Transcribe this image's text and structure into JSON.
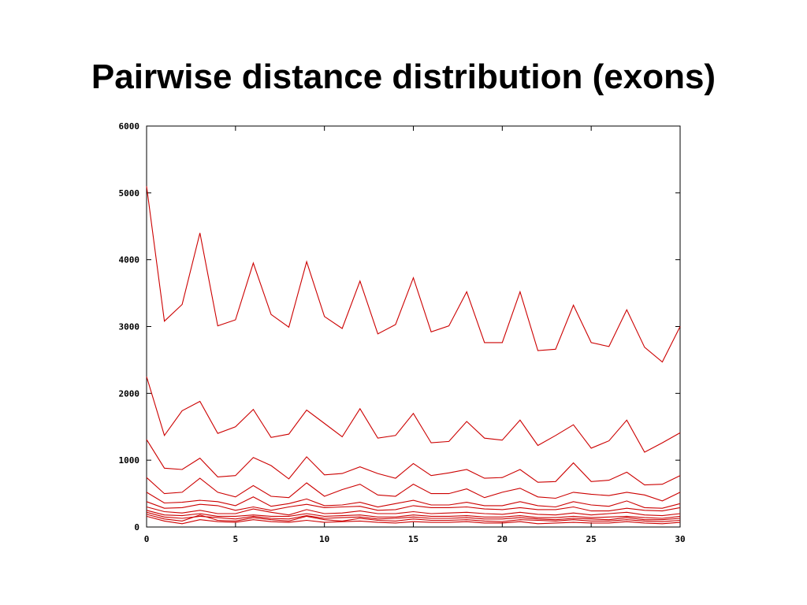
{
  "slide": {
    "title": "Pairwise distance distribution (exons)"
  },
  "chart_data": {
    "type": "line",
    "title": "",
    "xlabel": "",
    "ylabel": "",
    "xlim": [
      0,
      30
    ],
    "ylim": [
      0,
      6000
    ],
    "x_ticks": [
      "0",
      "5",
      "10",
      "15",
      "20",
      "25",
      "30"
    ],
    "y_ticks": [
      "0",
      "1000",
      "2000",
      "3000",
      "4000",
      "5000",
      "6000"
    ],
    "grid": false,
    "legend": "none",
    "series_color": "#cc0000",
    "x": [
      0,
      1,
      2,
      3,
      4,
      5,
      6,
      7,
      8,
      9,
      10,
      11,
      12,
      13,
      14,
      15,
      16,
      17,
      18,
      19,
      20,
      21,
      22,
      23,
      24,
      25,
      26,
      27,
      28,
      29,
      30
    ],
    "series": [
      {
        "values": [
          5100,
          3080,
          3330,
          4400,
          3010,
          3100,
          3950,
          3180,
          2990,
          3970,
          3150,
          2970,
          3680,
          2890,
          3030,
          3730,
          2920,
          3010,
          3520,
          2760,
          2760,
          3520,
          2640,
          2660,
          3320,
          2760,
          2700,
          3250,
          2690,
          2470,
          3000
        ]
      },
      {
        "values": [
          2250,
          1370,
          1740,
          1880,
          1400,
          1500,
          1760,
          1340,
          1390,
          1750,
          1550,
          1350,
          1770,
          1330,
          1370,
          1700,
          1260,
          1280,
          1580,
          1330,
          1300,
          1600,
          1220,
          1370,
          1530,
          1180,
          1290,
          1600,
          1120,
          1260,
          1410
        ]
      },
      {
        "values": [
          1310,
          880,
          860,
          1030,
          750,
          770,
          1040,
          920,
          720,
          1050,
          780,
          800,
          900,
          800,
          730,
          950,
          770,
          810,
          860,
          730,
          740,
          860,
          670,
          680,
          960,
          680,
          700,
          820,
          630,
          640,
          770
        ]
      },
      {
        "values": [
          740,
          500,
          520,
          730,
          520,
          450,
          620,
          460,
          440,
          660,
          460,
          560,
          640,
          480,
          460,
          640,
          500,
          500,
          570,
          440,
          520,
          580,
          450,
          430,
          520,
          490,
          470,
          520,
          480,
          390,
          520
        ]
      },
      {
        "values": [
          520,
          360,
          370,
          400,
          380,
          320,
          450,
          310,
          350,
          420,
          320,
          330,
          370,
          300,
          350,
          400,
          330,
          330,
          370,
          320,
          320,
          380,
          320,
          300,
          380,
          330,
          310,
          390,
          290,
          280,
          350
        ]
      },
      {
        "values": [
          380,
          280,
          290,
          340,
          320,
          250,
          300,
          250,
          300,
          340,
          290,
          300,
          310,
          250,
          260,
          320,
          290,
          290,
          300,
          270,
          260,
          290,
          260,
          260,
          300,
          240,
          240,
          280,
          250,
          240,
          290
        ]
      },
      {
        "values": [
          300,
          230,
          210,
          250,
          200,
          200,
          270,
          220,
          180,
          260,
          200,
          210,
          240,
          200,
          200,
          230,
          200,
          210,
          220,
          200,
          190,
          220,
          190,
          180,
          210,
          180,
          200,
          220,
          180,
          170,
          200
        ]
      },
      {
        "values": [
          250,
          180,
          170,
          200,
          160,
          160,
          180,
          160,
          160,
          200,
          160,
          170,
          180,
          150,
          150,
          180,
          160,
          160,
          170,
          150,
          150,
          170,
          140,
          140,
          160,
          140,
          150,
          160,
          140,
          130,
          160
        ]
      },
      {
        "values": [
          220,
          150,
          130,
          160,
          140,
          120,
          160,
          130,
          120,
          170,
          130,
          140,
          150,
          120,
          130,
          150,
          130,
          130,
          140,
          120,
          120,
          140,
          120,
          110,
          130,
          120,
          110,
          140,
          110,
          110,
          130
        ]
      },
      {
        "values": [
          190,
          120,
          90,
          180,
          100,
          90,
          140,
          110,
          90,
          160,
          110,
          90,
          130,
          100,
          90,
          120,
          100,
          100,
          110,
          90,
          80,
          110,
          100,
          90,
          110,
          90,
          90,
          110,
          90,
          80,
          100
        ]
      },
      {
        "values": [
          160,
          90,
          50,
          110,
          80,
          70,
          110,
          80,
          70,
          100,
          70,
          80,
          90,
          70,
          60,
          80,
          70,
          70,
          80,
          60,
          60,
          80,
          50,
          60,
          70,
          60,
          60,
          80,
          60,
          50,
          70
        ]
      }
    ]
  }
}
